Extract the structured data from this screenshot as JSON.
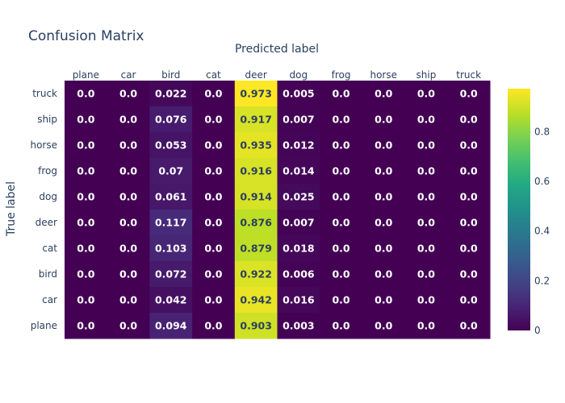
{
  "chart_data": {
    "type": "heatmap",
    "title": "Confusion Matrix",
    "xlabel": "Predicted label",
    "ylabel": "True label",
    "x": [
      "plane",
      "car",
      "bird",
      "cat",
      "deer",
      "dog",
      "frog",
      "horse",
      "ship",
      "truck"
    ],
    "y_top_to_bottom": [
      "truck",
      "ship",
      "horse",
      "frog",
      "dog",
      "deer",
      "cat",
      "bird",
      "car",
      "plane"
    ],
    "z": [
      [
        "0.0",
        "0.0",
        "0.022",
        "0.0",
        "0.973",
        "0.005",
        "0.0",
        "0.0",
        "0.0",
        "0.0"
      ],
      [
        "0.0",
        "0.0",
        "0.076",
        "0.0",
        "0.917",
        "0.007",
        "0.0",
        "0.0",
        "0.0",
        "0.0"
      ],
      [
        "0.0",
        "0.0",
        "0.053",
        "0.0",
        "0.935",
        "0.012",
        "0.0",
        "0.0",
        "0.0",
        "0.0"
      ],
      [
        "0.0",
        "0.0",
        "0.07",
        "0.0",
        "0.916",
        "0.014",
        "0.0",
        "0.0",
        "0.0",
        "0.0"
      ],
      [
        "0.0",
        "0.0",
        "0.061",
        "0.0",
        "0.914",
        "0.025",
        "0.0",
        "0.0",
        "0.0",
        "0.0"
      ],
      [
        "0.0",
        "0.0",
        "0.117",
        "0.0",
        "0.876",
        "0.007",
        "0.0",
        "0.0",
        "0.0",
        "0.0"
      ],
      [
        "0.0",
        "0.0",
        "0.103",
        "0.0",
        "0.879",
        "0.018",
        "0.0",
        "0.0",
        "0.0",
        "0.0"
      ],
      [
        "0.0",
        "0.0",
        "0.072",
        "0.0",
        "0.922",
        "0.006",
        "0.0",
        "0.0",
        "0.0",
        "0.0"
      ],
      [
        "0.0",
        "0.0",
        "0.042",
        "0.0",
        "0.942",
        "0.016",
        "0.0",
        "0.0",
        "0.0",
        "0.0"
      ],
      [
        "0.0",
        "0.0",
        "0.094",
        "0.0",
        "0.903",
        "0.003",
        "0.0",
        "0.0",
        "0.0",
        "0.0"
      ]
    ],
    "colorscale": "Viridis",
    "zmin": 0,
    "zmax": 0.973,
    "colorbar": {
      "ticks": [
        0,
        0.2,
        0.4,
        0.6,
        0.8
      ],
      "tick_labels": [
        "0",
        "0.2",
        "0.4",
        "0.6",
        "0.8"
      ]
    },
    "x_axis_side": "top",
    "legend": "colorbar-right",
    "grid": false
  }
}
